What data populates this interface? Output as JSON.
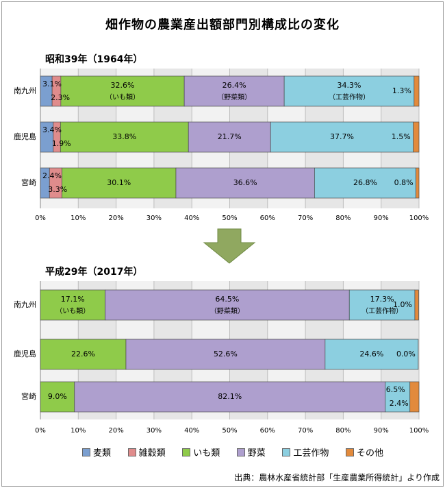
{
  "title": "畑作物の農業産出額部門別構成比の変化",
  "source": "出典：農林水産省統計部「生産農業所得統計」より作成",
  "legend": [
    {
      "name": "麦類",
      "color": "#7b9fd0"
    },
    {
      "name": "雑穀類",
      "color": "#e08c8c"
    },
    {
      "name": "いも類",
      "color": "#8fcb4a"
    },
    {
      "name": "野菜",
      "color": "#ae9fce"
    },
    {
      "name": "工芸作物",
      "color": "#8ccfe0"
    },
    {
      "name": "その他",
      "color": "#e28a3c"
    }
  ],
  "chart_data": [
    {
      "type": "bar",
      "stacked": "horizontal-100%",
      "title": "昭和39年（1964年）",
      "categories": [
        "南九州",
        "鹿児島",
        "宮崎"
      ],
      "xlim": [
        0,
        100
      ],
      "xticks": [
        "0%",
        "10%",
        "20%",
        "30%",
        "40%",
        "50%",
        "60%",
        "70%",
        "80%",
        "90%",
        "100%"
      ],
      "grid": true,
      "series": [
        {
          "name": "麦類",
          "values": [
            3.1,
            3.4,
            2.4
          ]
        },
        {
          "name": "雑穀類",
          "values": [
            2.3,
            1.9,
            3.3
          ]
        },
        {
          "name": "いも類",
          "values": [
            32.6,
            33.8,
            30.1
          ]
        },
        {
          "name": "野菜",
          "values": [
            26.4,
            21.7,
            36.6
          ]
        },
        {
          "name": "工芸作物",
          "values": [
            34.3,
            37.7,
            26.8
          ]
        },
        {
          "name": "その他",
          "values": [
            1.3,
            1.5,
            0.8
          ]
        }
      ],
      "data_labels": [
        {
          "row": 0,
          "text": "3.1%",
          "series": 0
        },
        {
          "row": 0,
          "text": "2.3%",
          "series": 1
        },
        {
          "row": 0,
          "text": "32.6%",
          "sub": "（いも類）",
          "series": 2
        },
        {
          "row": 0,
          "text": "26.4%",
          "sub": "（野菜類）",
          "series": 3
        },
        {
          "row": 0,
          "text": "34.3%",
          "sub": "（工芸作物）",
          "series": 4
        },
        {
          "row": 0,
          "text": "1.3%",
          "series": 5
        },
        {
          "row": 1,
          "text": "3.4%",
          "series": 0
        },
        {
          "row": 1,
          "text": "1.9%",
          "series": 1
        },
        {
          "row": 1,
          "text": "33.8%",
          "series": 2
        },
        {
          "row": 1,
          "text": "21.7%",
          "series": 3
        },
        {
          "row": 1,
          "text": "37.7%",
          "series": 4
        },
        {
          "row": 1,
          "text": "1.5%",
          "series": 5
        },
        {
          "row": 2,
          "text": "2.4%",
          "series": 0
        },
        {
          "row": 2,
          "text": "3.3%",
          "series": 1
        },
        {
          "row": 2,
          "text": "30.1%",
          "series": 2
        },
        {
          "row": 2,
          "text": "36.6%",
          "series": 3
        },
        {
          "row": 2,
          "text": "26.8%",
          "series": 4
        },
        {
          "row": 2,
          "text": "0.8%",
          "series": 5
        }
      ]
    },
    {
      "type": "bar",
      "stacked": "horizontal-100%",
      "title": "平成29年（2017年）",
      "categories": [
        "南九州",
        "鹿児島",
        "宮崎"
      ],
      "xlim": [
        0,
        100
      ],
      "xticks": [
        "0%",
        "10%",
        "20%",
        "30%",
        "40%",
        "50%",
        "60%",
        "70%",
        "80%",
        "90%",
        "100%"
      ],
      "grid": true,
      "series": [
        {
          "name": "麦類",
          "values": [
            0,
            0,
            0
          ]
        },
        {
          "name": "雑穀類",
          "values": [
            0,
            0,
            0
          ]
        },
        {
          "name": "いも類",
          "values": [
            17.1,
            22.6,
            9.0
          ]
        },
        {
          "name": "野菜",
          "values": [
            64.5,
            52.6,
            82.1
          ]
        },
        {
          "name": "工芸作物",
          "values": [
            17.3,
            24.6,
            6.5
          ]
        },
        {
          "name": "その他",
          "values": [
            1.0,
            0.0,
            2.4
          ]
        }
      ],
      "data_labels": [
        {
          "row": 0,
          "text": "17.1%",
          "sub": "（いも類）",
          "series": 2
        },
        {
          "row": 0,
          "text": "64.5%",
          "sub": "（野菜類）",
          "series": 3
        },
        {
          "row": 0,
          "text": "17.3%",
          "sub": "（工芸作物）",
          "series": 4
        },
        {
          "row": 0,
          "text": "1.0%",
          "series": 5
        },
        {
          "row": 1,
          "text": "22.6%",
          "series": 2
        },
        {
          "row": 1,
          "text": "52.6%",
          "series": 3
        },
        {
          "row": 1,
          "text": "24.6%",
          "series": 4
        },
        {
          "row": 1,
          "text": "0.0%",
          "series": 5
        },
        {
          "row": 2,
          "text": "9.0%",
          "series": 2
        },
        {
          "row": 2,
          "text": "82.1%",
          "series": 3
        },
        {
          "row": 2,
          "text": "6.5%",
          "series": 4
        },
        {
          "row": 2,
          "text": "2.4%",
          "series": 5
        }
      ]
    }
  ]
}
